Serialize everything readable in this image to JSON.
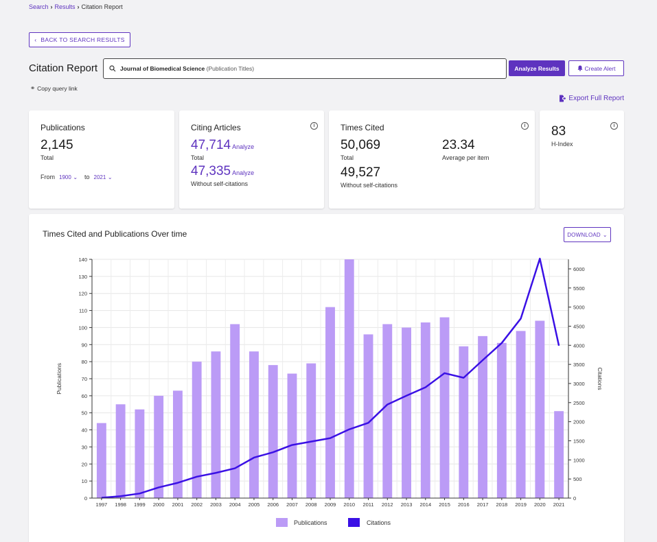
{
  "breadcrumb": {
    "search": "Search",
    "results": "Results",
    "current": "Citation Report"
  },
  "back_button": "BACK TO SEARCH RESULTS",
  "page_title": "Citation Report",
  "query": {
    "text": "Journal of Biomedical Science",
    "type": "(Publication Titles)"
  },
  "analyze_button": "Analyze Results",
  "alert_button": "Create Alert",
  "copy_link": "Copy query link",
  "export": "Export Full Report",
  "cards": {
    "publications": {
      "title": "Publications",
      "value": "2,145",
      "label": "Total",
      "from_label": "From",
      "from_year": "1900",
      "to_label": "to",
      "to_year": "2021"
    },
    "citing": {
      "title": "Citing Articles",
      "total_value": "47,714",
      "total_action": "Analyze",
      "total_label": "Total",
      "self_value": "47,335",
      "self_action": "Analyze",
      "self_label": "Without self-citations"
    },
    "times_cited": {
      "title": "Times Cited",
      "total_value": "50,069",
      "total_label": "Total",
      "avg_value": "23.34",
      "avg_label": "Average per item",
      "self_value": "49,527",
      "self_label": "Without self-citations"
    },
    "hindex": {
      "value": "83",
      "label": "H-Index"
    }
  },
  "chart_panel": {
    "title": "Times Cited and Publications Over time",
    "download": "DOWNLOAD"
  },
  "colors": {
    "accent": "#5e33bf",
    "bar": "#bb9bf6",
    "line": "#3a10e5"
  },
  "chart_data": {
    "type": "bar",
    "categories": [
      "1997",
      "1998",
      "1999",
      "2000",
      "2001",
      "2002",
      "2003",
      "2004",
      "2005",
      "2006",
      "2007",
      "2008",
      "2009",
      "2010",
      "2011",
      "2012",
      "2013",
      "2014",
      "2015",
      "2016",
      "2017",
      "2018",
      "2019",
      "2020",
      "2021"
    ],
    "series": [
      {
        "name": "Publications",
        "type": "bar",
        "axis": "left",
        "values": [
          44,
          55,
          52,
          60,
          63,
          80,
          86,
          102,
          86,
          78,
          73,
          79,
          112,
          140,
          96,
          102,
          100,
          103,
          106,
          89,
          95,
          91,
          98,
          104,
          51
        ]
      },
      {
        "name": "Citations",
        "type": "line",
        "axis": "right",
        "values": [
          10,
          50,
          120,
          280,
          400,
          560,
          660,
          780,
          1060,
          1200,
          1390,
          1480,
          1570,
          1800,
          1970,
          2450,
          2680,
          2900,
          3270,
          3150,
          3610,
          4060,
          4700,
          6270,
          3990
        ]
      }
    ],
    "ylabel": "Publications",
    "y2label": "Citations",
    "ylim": [
      0,
      140
    ],
    "y2lim": [
      0,
      6250
    ],
    "yticks": [
      0,
      10,
      20,
      30,
      40,
      50,
      60,
      70,
      80,
      90,
      100,
      110,
      120,
      130,
      140
    ],
    "y2ticks": [
      0,
      500,
      1000,
      1500,
      2000,
      2500,
      3000,
      3500,
      4000,
      4500,
      5000,
      5500,
      6000
    ],
    "grid": true,
    "legend": "bottom-center"
  }
}
